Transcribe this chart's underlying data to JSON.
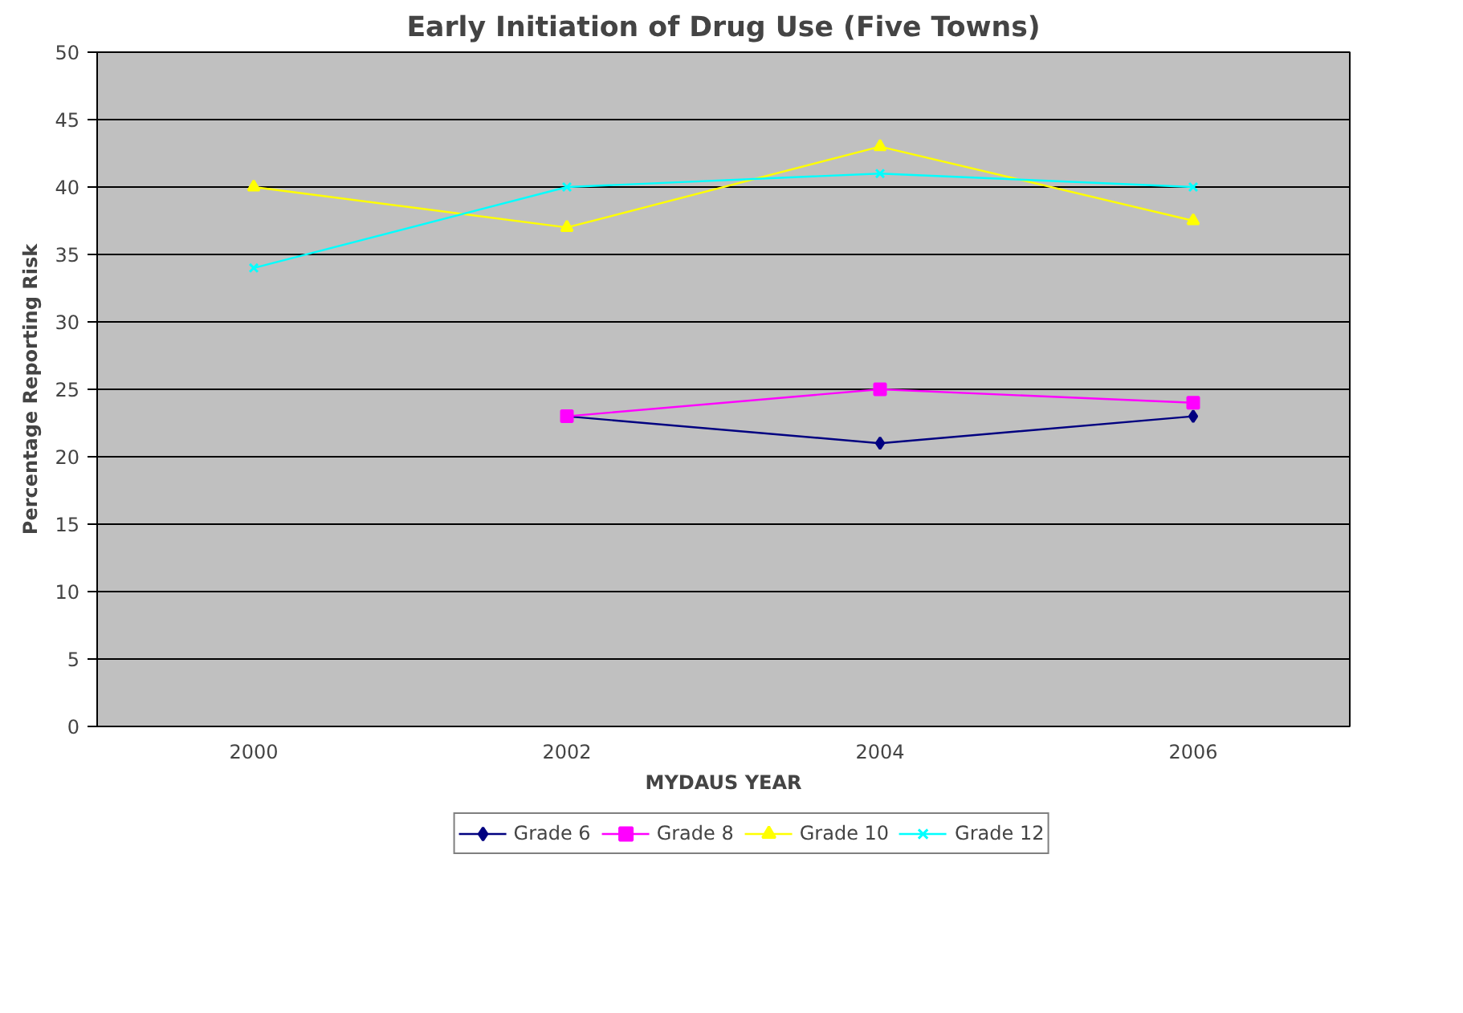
{
  "chart_data": {
    "type": "line",
    "title": "Early Initiation of Drug Use (Five Towns)",
    "xlabel": "MYDAUS YEAR",
    "ylabel": "Percentage Reporting Risk",
    "categories": [
      "2000",
      "2002",
      "2004",
      "2006"
    ],
    "series": [
      {
        "name": "Grade 6",
        "color": "#000080",
        "marker": "diamond",
        "values": [
          null,
          23,
          21,
          23
        ]
      },
      {
        "name": "Grade 8",
        "color": "#ff00ff",
        "marker": "square",
        "values": [
          null,
          23,
          25,
          24
        ]
      },
      {
        "name": "Grade 10",
        "color": "#ffff00",
        "marker": "triangle",
        "values": [
          40,
          37,
          43,
          37.5
        ]
      },
      {
        "name": "Grade 12",
        "color": "#00ffff",
        "marker": "cross",
        "values": [
          34,
          40,
          41,
          40
        ]
      }
    ],
    "ylim": [
      0,
      50
    ],
    "yticks": [
      0,
      5,
      10,
      15,
      20,
      25,
      30,
      35,
      40,
      45,
      50
    ],
    "grid": "y",
    "legend": "bottom"
  }
}
